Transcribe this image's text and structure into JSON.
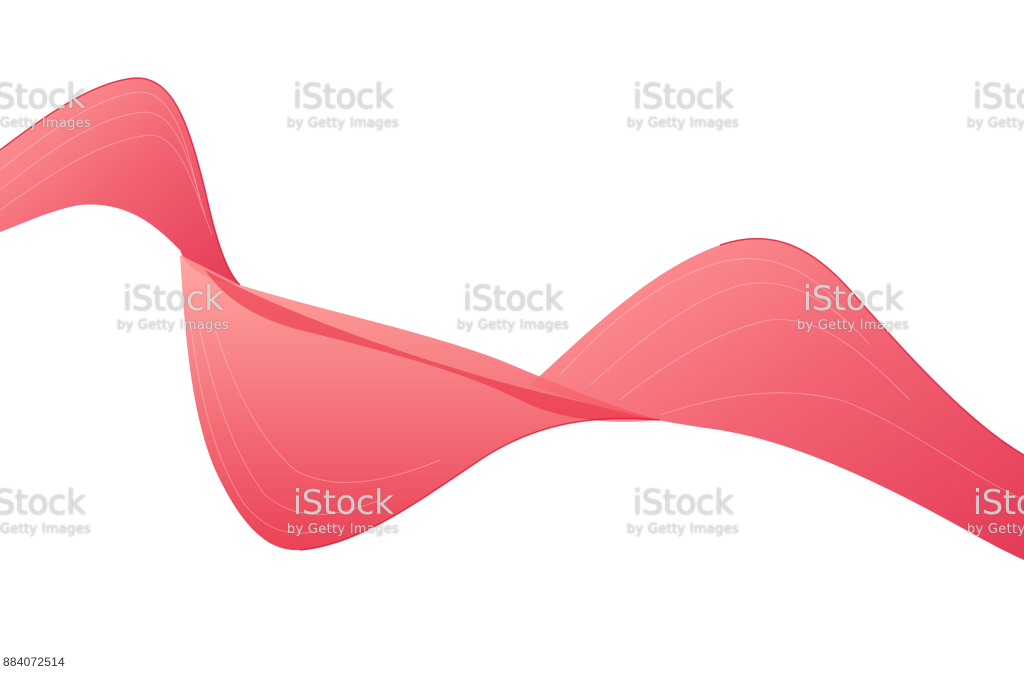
{
  "image": {
    "subject": "red-ribbon-wave",
    "colors": {
      "background": "#ffffff",
      "ribbon_dark": "#e0183a",
      "ribbon_mid": "#f0485a",
      "ribbon_light": "#ff8f8a"
    }
  },
  "watermark": {
    "brand": "iStock",
    "tagline": "by Getty Images"
  },
  "stock_id": "884072514"
}
